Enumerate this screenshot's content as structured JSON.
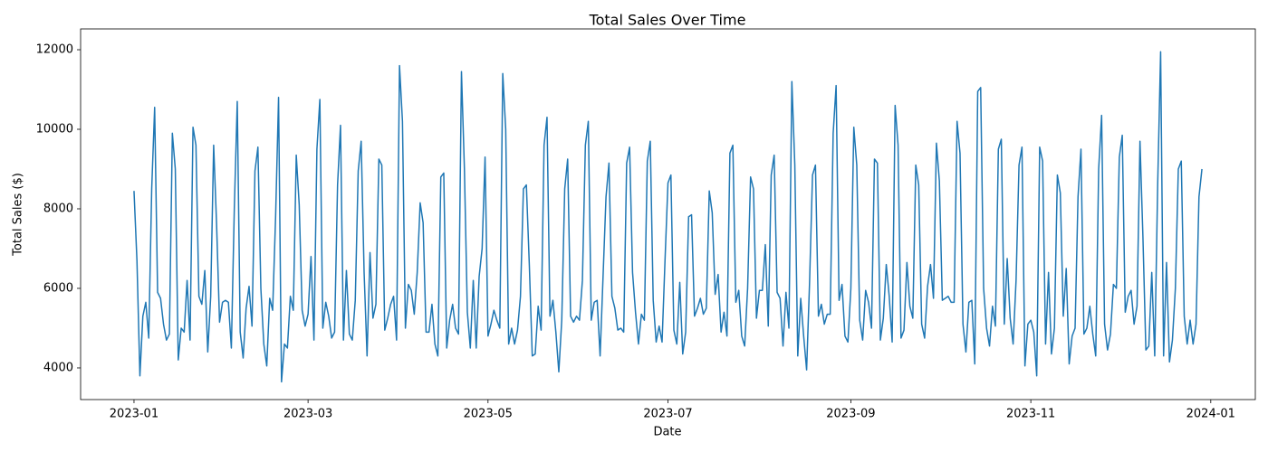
{
  "chart_data": {
    "type": "line",
    "title": "Total Sales Over Time",
    "x_label": "Date",
    "y_label": "Total Sales ($)",
    "color": "#1f77b4",
    "xlim": [
      -18.1,
      380.1
    ],
    "xticks": [
      {
        "value": 0,
        "label": "2023-01"
      },
      {
        "value": 59,
        "label": "2023-03"
      },
      {
        "value": 120,
        "label": "2023-05"
      },
      {
        "value": 181,
        "label": "2023-07"
      },
      {
        "value": 243,
        "label": "2023-09"
      },
      {
        "value": 304,
        "label": "2023-11"
      },
      {
        "value": 365,
        "label": "2024-01"
      }
    ],
    "ylim": [
      3204,
      12523
    ],
    "yticks": [
      4000,
      6000,
      8000,
      10000,
      12000
    ],
    "values": [
      8450,
      6700,
      3800,
      5300,
      5650,
      4750,
      8500,
      10550,
      5900,
      5750,
      5100,
      4700,
      4850,
      9900,
      9000,
      4200,
      5000,
      4900,
      6200,
      4700,
      10050,
      9600,
      5800,
      5600,
      6450,
      4400,
      5800,
      9600,
      7600,
      5150,
      5650,
      5700,
      5650,
      4500,
      8000,
      10700,
      4900,
      4250,
      5500,
      6050,
      5050,
      8950,
      9550,
      6000,
      4600,
      4050,
      5750,
      5450,
      7800,
      10800,
      3650,
      4600,
      4500,
      5800,
      5450,
      9350,
      8100,
      5450,
      5050,
      5350,
      6800,
      4700,
      9500,
      10750,
      5000,
      5650,
      5300,
      4750,
      4900,
      8600,
      10100,
      4700,
      6450,
      4850,
      4700,
      5700,
      8950,
      9700,
      6400,
      4300,
      6900,
      5250,
      5600,
      9250,
      9100,
      4950,
      5250,
      5600,
      5800,
      4700,
      11600,
      10200,
      5000,
      6100,
      5950,
      5350,
      6400,
      8150,
      7650,
      4900,
      4900,
      5600,
      4600,
      4300,
      8800,
      8900,
      4500,
      5200,
      5600,
      5000,
      4850,
      11450,
      9000,
      5400,
      4500,
      6200,
      4500,
      6300,
      7000,
      9300,
      4800,
      5100,
      5450,
      5200,
      5000,
      11400,
      10000,
      4600,
      5000,
      4600,
      4950,
      5800,
      8500,
      8600,
      6600,
      4300,
      4350,
      5550,
      4950,
      9600,
      10300,
      5300,
      5700,
      4900,
      3900,
      5200,
      8500,
      9250,
      5300,
      5150,
      5300,
      5200,
      6200,
      9600,
      10200,
      5200,
      5650,
      5700,
      4300,
      6300,
      8300,
      9150,
      5800,
      5500,
      4950,
      5000,
      4900,
      9150,
      9550,
      6400,
      5400,
      4600,
      5350,
      5200,
      9200,
      9700,
      5700,
      4650,
      5050,
      4650,
      6700,
      8650,
      8850,
      4950,
      4600,
      6150,
      4350,
      4900,
      7800,
      7850,
      5300,
      5500,
      5750,
      5350,
      5500,
      8450,
      7900,
      5850,
      6350,
      4900,
      5400,
      4800,
      9400,
      9600,
      5650,
      5950,
      4800,
      4550,
      6000,
      8800,
      8500,
      5250,
      5950,
      5950,
      7100,
      5050,
      8850,
      9350,
      5900,
      5750,
      4550,
      5900,
      5000,
      11200,
      9100,
      4300,
      5750,
      4800,
      3950,
      6150,
      8850,
      9100,
      5300,
      5600,
      5100,
      5350,
      5350,
      9900,
      11100,
      5700,
      6100,
      4800,
      4650,
      6000,
      10050,
      9100,
      5200,
      4700,
      5950,
      5650,
      5000,
      9250,
      9150,
      4700,
      5250,
      6600,
      5800,
      4650,
      10600,
      9600,
      4750,
      4950,
      6650,
      5550,
      5250,
      9100,
      8600,
      5100,
      4750,
      6050,
      6600,
      5750,
      9650,
      8700,
      5700,
      5750,
      5800,
      5650,
      5650,
      10200,
      9400,
      5100,
      4400,
      5650,
      5700,
      4100,
      10950,
      11050,
      6000,
      5000,
      4550,
      5550,
      5050,
      9500,
      9750,
      5100,
      6750,
      5250,
      4600,
      6200,
      9100,
      9550,
      4050,
      5100,
      5200,
      4900,
      3800,
      9550,
      9200,
      4600,
      6400,
      4350,
      5000,
      8850,
      8400,
      5300,
      6500,
      4100,
      4800,
      5000,
      8300,
      9500,
      4850,
      5000,
      5550,
      4850,
      4300,
      9000,
      10350,
      5100,
      4450,
      4850,
      6100,
      6000,
      9300,
      9850,
      5400,
      5800,
      5950,
      5100,
      5550,
      9700,
      7300,
      4450,
      4550,
      6400,
      4300,
      8600,
      11950,
      4300,
      6650,
      4150,
      4700,
      6000,
      9000,
      9200,
      5300,
      4600,
      5200,
      4600,
      5100,
      8300,
      9000
    ]
  }
}
